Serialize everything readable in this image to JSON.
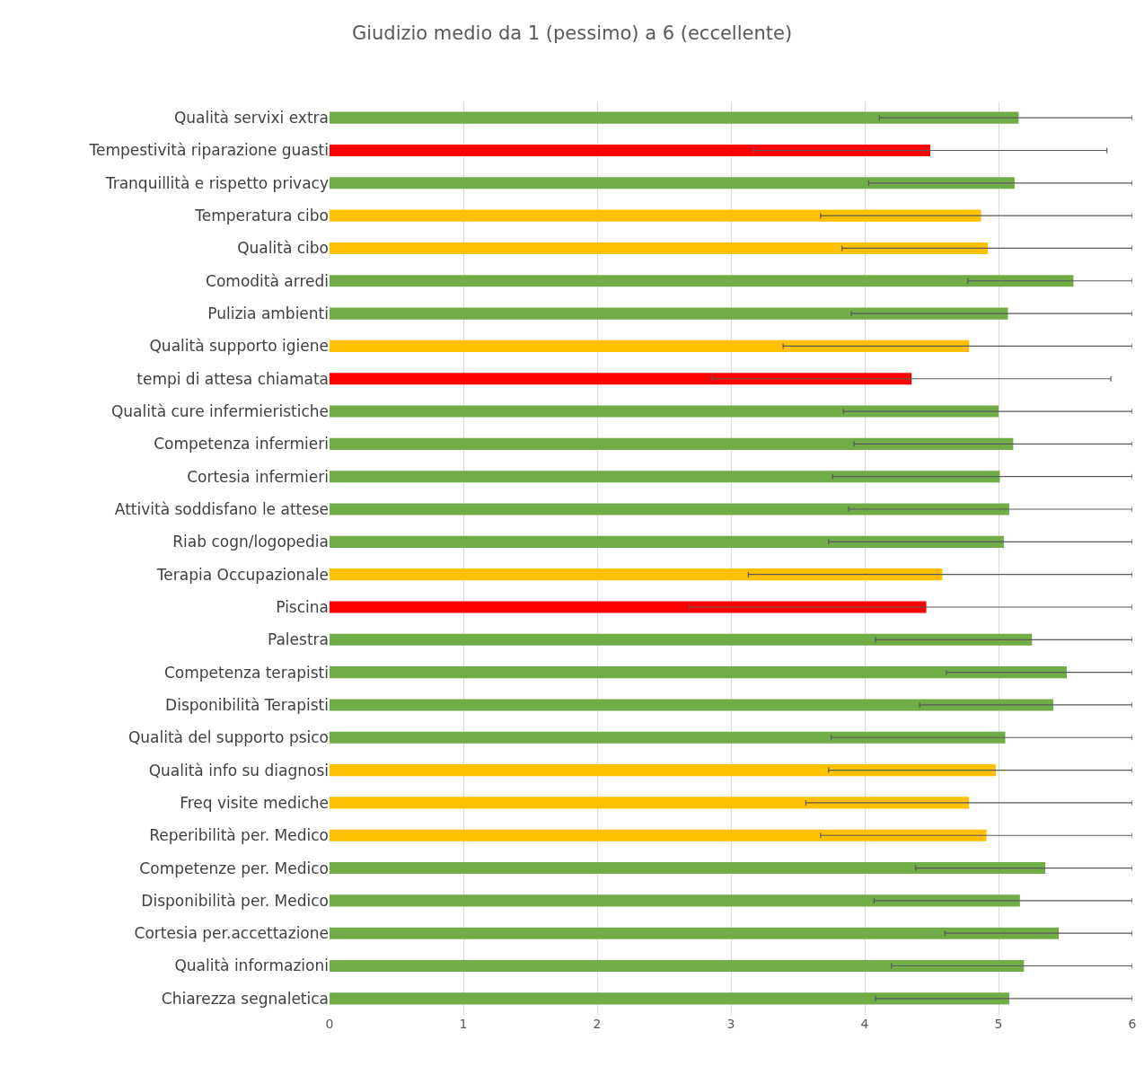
{
  "chart_data": {
    "type": "bar",
    "orientation": "horizontal",
    "title": "Giudizio medio da 1 (pessimo) a 6 (eccellente)",
    "categories": [
      "Qualità servixi extra",
      "Tempestività riparazione guasti",
      "Tranquillità e rispetto privacy",
      "Temperatura cibo",
      "Qualità cibo",
      "Comodità arredi",
      "Pulizia ambienti",
      "Qualità supporto igiene",
      "tempi di attesa chiamata",
      "Qualità cure infermieristiche",
      "Competenza infermieri",
      "Cortesia infermieri",
      "Attività soddisfano le attese",
      "Riab cogn/logopedia",
      "Terapia Occupazionale",
      "Piscina",
      "Palestra",
      "Competenza terapisti",
      "Disponibilità Terapisti",
      "Qualità del supporto psico",
      "Qualità info su diagnosi",
      "Freq visite mediche",
      "Reperibilità per. Medico",
      "Competenze per. Medico",
      "Disponibilità per. Medico",
      "Cortesia per.accettazione",
      "Qualità informazioni",
      "Chiarezza segnaletica"
    ],
    "values": [
      5.15,
      4.49,
      5.12,
      4.87,
      4.92,
      5.56,
      5.07,
      4.78,
      4.35,
      5.0,
      5.11,
      5.01,
      5.08,
      5.04,
      4.58,
      4.46,
      5.25,
      5.51,
      5.41,
      5.05,
      4.98,
      4.78,
      4.91,
      5.35,
      5.16,
      5.45,
      5.19,
      5.08
    ],
    "colors": [
      "#70ad47",
      "#ff0000",
      "#70ad47",
      "#ffc000",
      "#ffc000",
      "#70ad47",
      "#70ad47",
      "#ffc000",
      "#ff0000",
      "#70ad47",
      "#70ad47",
      "#70ad47",
      "#70ad47",
      "#70ad47",
      "#ffc000",
      "#ff0000",
      "#70ad47",
      "#70ad47",
      "#70ad47",
      "#70ad47",
      "#ffc000",
      "#ffc000",
      "#ffc000",
      "#70ad47",
      "#70ad47",
      "#70ad47",
      "#70ad47",
      "#70ad47"
    ],
    "errors": [
      [
        4.11,
        6
      ],
      [
        3.17,
        5.81
      ],
      [
        4.03,
        6
      ],
      [
        3.67,
        6
      ],
      [
        3.83,
        6
      ],
      [
        4.77,
        6
      ],
      [
        3.9,
        6
      ],
      [
        3.39,
        6
      ],
      [
        2.86,
        5.84
      ],
      [
        3.84,
        6
      ],
      [
        3.92,
        6
      ],
      [
        3.76,
        6
      ],
      [
        3.88,
        6
      ],
      [
        3.73,
        6
      ],
      [
        3.13,
        6
      ],
      [
        2.69,
        6
      ],
      [
        4.08,
        6
      ],
      [
        4.61,
        6
      ],
      [
        4.41,
        6
      ],
      [
        3.75,
        6
      ],
      [
        3.73,
        6
      ],
      [
        3.56,
        6
      ],
      [
        3.67,
        6
      ],
      [
        4.38,
        6
      ],
      [
        4.07,
        6
      ],
      [
        4.6,
        6
      ],
      [
        4.2,
        6
      ],
      [
        4.08,
        6
      ]
    ],
    "xlim": [
      0,
      6
    ],
    "xticks": [
      0,
      1,
      2,
      3,
      4,
      5,
      6
    ],
    "grid": "x"
  }
}
